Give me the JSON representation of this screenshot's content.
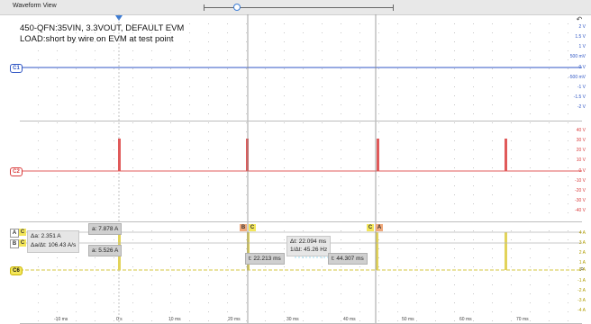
{
  "window": {
    "title": "Waveform View"
  },
  "annotation": {
    "line1": "450-QFN:35VIN, 3.3VOUT, DEFAULT EVM",
    "line2": "LOAD:short by wire on EVM at test point"
  },
  "channels": {
    "c1": {
      "label": "C1",
      "color": "#2f56c4"
    },
    "c2": {
      "label": "C2",
      "color": "#d93a3a"
    },
    "c6": {
      "label": "C6",
      "color": "#c9b400"
    }
  },
  "scales": {
    "c1": [
      "2 V",
      "1.5 V",
      "1 V",
      "500 mV",
      "0 V",
      "-500 mV",
      "-1 V",
      "-1.5 V",
      "-2 V"
    ],
    "c2": [
      "40 V",
      "30 V",
      "20 V",
      "10 V",
      "0 V",
      "-10 V",
      "-20 V",
      "-30 V",
      "-40 V"
    ],
    "c6": [
      "4 A",
      "3 A",
      "2 A",
      "1 A",
      "0 A",
      "-1 A",
      "-2 A",
      "-3 A",
      "-4 A"
    ]
  },
  "time_ticks": [
    "-10 ms",
    "0 s",
    "10 ms",
    "20 ms",
    "30 ms",
    "40 ms",
    "50 ms",
    "60 ms",
    "70 ms"
  ],
  "cursors": {
    "a_tag": "A",
    "b_tag": "B",
    "a_value": "a: 7.878 A",
    "b_value": "a: 5.526 A",
    "delta_a": "Δa: 2.351 A",
    "delta_rate": "Δa/Δt: 106.43 A/s",
    "delta_t": "Δt: 22.094 ms",
    "inv_delta_t": "1/Δt: 45.26 Hz",
    "t_a": "t: 22.213 ms",
    "t_b": "t: 44.307 ms"
  },
  "icons": {
    "trigger": "trigger-arrow-icon",
    "corner": "undo-zoom-icon",
    "search": "search-icon"
  }
}
